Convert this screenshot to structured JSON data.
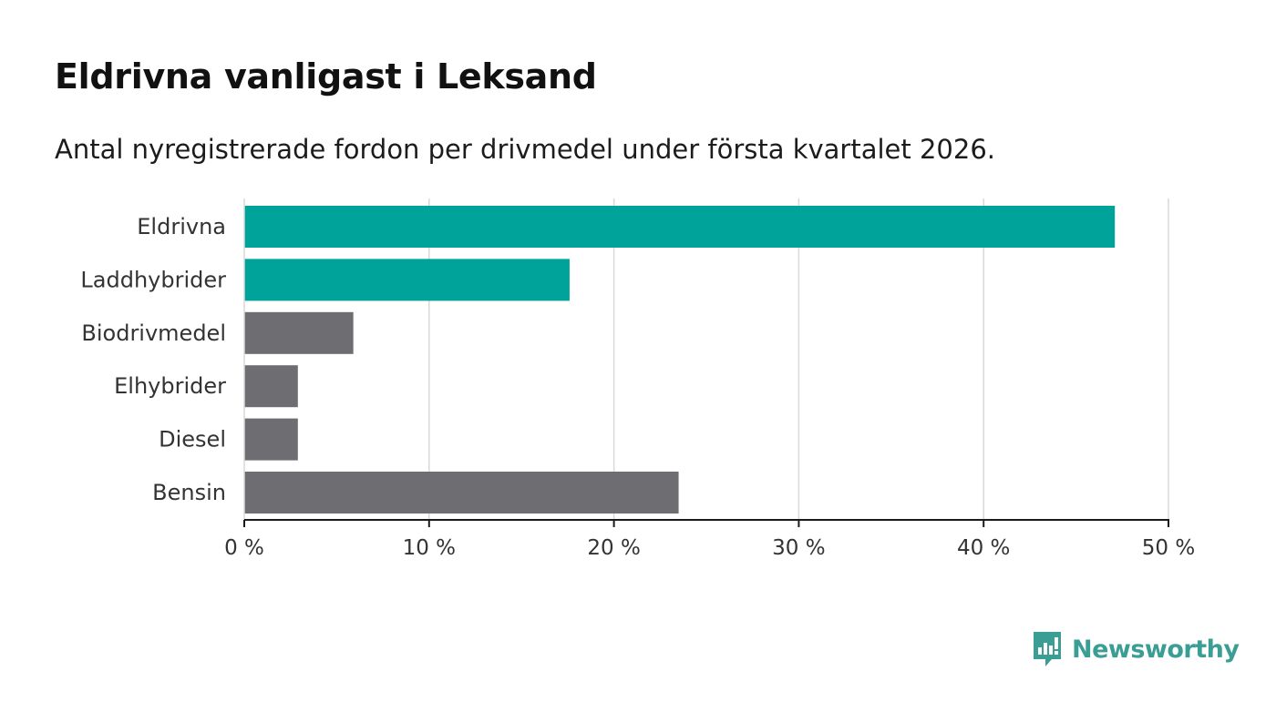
{
  "title": "Eldrivna vanligast i Leksand",
  "subtitle": "Antal nyregistrerade fordon per drivmedel under första kvartalet 2026.",
  "brand": {
    "name": "Newsworthy",
    "icon": "newsworthy-logo-icon",
    "color": "#3a9e94"
  },
  "colors": {
    "highlight": "#00a39a",
    "default": "#6e6d72",
    "grid": "#d9d9d9",
    "axis": "#1a1a1a"
  },
  "chart_data": {
    "type": "bar",
    "orientation": "horizontal",
    "title": "Eldrivna vanligast i Leksand",
    "subtitle": "Antal nyregistrerade fordon per drivmedel under första kvartalet 2026.",
    "xlabel": "",
    "ylabel": "",
    "categories": [
      "Eldrivna",
      "Laddhybrider",
      "Biodrivmedel",
      "Elhybrider",
      "Diesel",
      "Bensin"
    ],
    "values": [
      47.1,
      17.6,
      5.9,
      2.9,
      2.9,
      23.5
    ],
    "highlighted": [
      true,
      true,
      false,
      false,
      false,
      false
    ],
    "xlim": [
      0,
      50
    ],
    "ticks": [
      0,
      10,
      20,
      30,
      40,
      50
    ],
    "tick_labels": [
      "0 %",
      "10 %",
      "20 %",
      "30 %",
      "40 %",
      "50 %"
    ],
    "grid": true,
    "unit": "%"
  }
}
